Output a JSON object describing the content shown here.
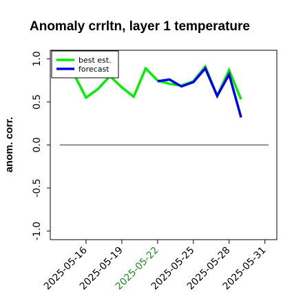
{
  "chart_data": {
    "type": "line",
    "title": "Anomaly crrltn, layer 1 temperature",
    "xlabel": "",
    "ylabel": "anom. corr.",
    "ylim": [
      -1.1,
      1.1
    ],
    "xlim": [
      "2025-05-13",
      "2025-06-01"
    ],
    "yticks": [
      -1.0,
      -0.5,
      0.0,
      0.5,
      1.0
    ],
    "ytick_labels": [
      "-1.0",
      "-0.5",
      "0.0",
      "0.5",
      "1.0"
    ],
    "xticks": [
      "2025-05-16",
      "2025-05-19",
      "2025-05-22",
      "2025-05-25",
      "2025-05-28",
      "2025-05-31"
    ],
    "xtick_labels": [
      "2025-05-16",
      "2025-05-19",
      "2025-05-22",
      "2025-05-25",
      "2025-05-28",
      "2025-05-31"
    ],
    "xtick_colors": [
      "#000000",
      "#000000",
      "#1e8c1e",
      "#000000",
      "#000000",
      "#000000"
    ],
    "zero_line": 0,
    "grid": false,
    "legend_position": "top-left",
    "series": [
      {
        "name": "best est.",
        "color": "#00ee00",
        "x": [
          "2025-05-15",
          "2025-05-16",
          "2025-05-17",
          "2025-05-18",
          "2025-05-19",
          "2025-05-20",
          "2025-05-21",
          "2025-05-22",
          "2025-05-23",
          "2025-05-24",
          "2025-05-25",
          "2025-05-26",
          "2025-05-27",
          "2025-05-28",
          "2025-05-29"
        ],
        "values": [
          0.82,
          0.55,
          0.65,
          0.8,
          0.67,
          0.56,
          0.89,
          0.75,
          0.71,
          0.69,
          0.74,
          0.91,
          0.57,
          0.87,
          0.53
        ]
      },
      {
        "name": "forecast",
        "color": "#0000ee",
        "x": [
          "2025-05-22",
          "2025-05-23",
          "2025-05-24",
          "2025-05-25",
          "2025-05-26",
          "2025-05-27",
          "2025-05-28",
          "2025-05-29"
        ],
        "values": [
          0.74,
          0.76,
          0.68,
          0.73,
          0.89,
          0.57,
          0.82,
          0.32
        ]
      }
    ]
  }
}
